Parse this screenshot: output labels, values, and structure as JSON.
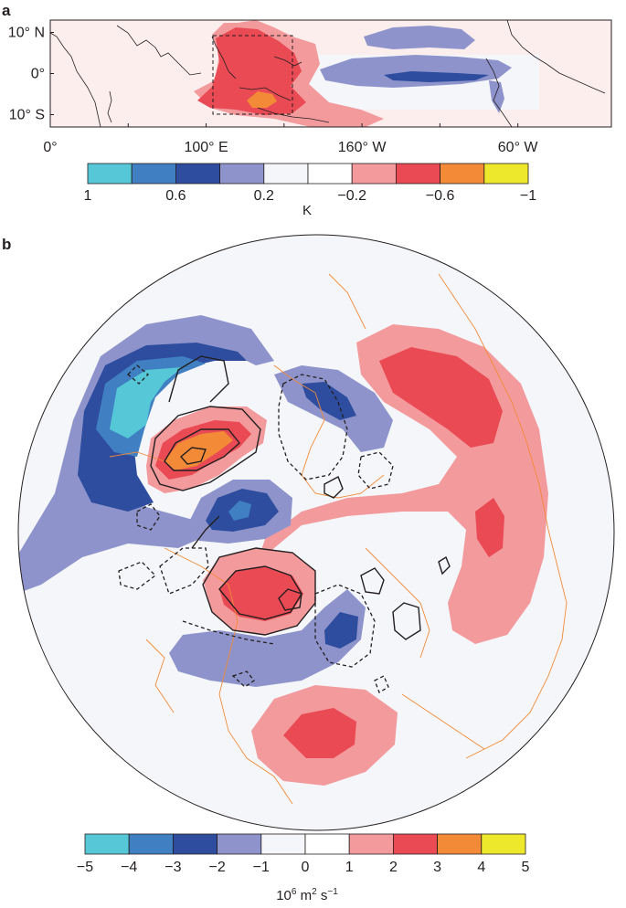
{
  "chart_data": [
    {
      "panel_label": "a",
      "type": "heatmap",
      "x_ticks": [
        "0°",
        "100° E",
        "160° W",
        "60° W"
      ],
      "x_tick_values": [
        0,
        100,
        200,
        300
      ],
      "y_ticks": [
        "10° N",
        "0°",
        "10° S"
      ],
      "y_tick_values": [
        10,
        0,
        -10
      ],
      "xlim": [
        0,
        360
      ],
      "ylim": [
        -13,
        13
      ],
      "box_region": {
        "lon": [
          100,
          150
        ],
        "lat": [
          -10,
          10
        ]
      },
      "colorbar": {
        "tick_labels": [
          "1",
          "0.6",
          "0.2",
          "−0.2",
          "−0.6",
          "−1"
        ],
        "unit": "K",
        "colors": [
          "#55c7d6",
          "#3f7fc2",
          "#2e4d9e",
          "#8e94cb",
          "#f4f6fa",
          "#ffffff",
          "#f39a9d",
          "#ea4a53",
          "#f28a37",
          "#eee82d"
        ]
      },
      "features": [
        {
          "name": "maritime-continent-warm",
          "level": -0.6,
          "lon": 118,
          "lat": -5
        },
        {
          "name": "maritime-continent-peak",
          "level": -1.0,
          "lon": 130,
          "lat": -6
        },
        {
          "name": "central-pacific-cool",
          "level": 0.6,
          "lon": 215,
          "lat": 0
        },
        {
          "name": "north-pacific-cool",
          "level": 0.2,
          "lon": 210,
          "lat": 8
        }
      ]
    },
    {
      "panel_label": "b",
      "type": "heatmap",
      "projection": "north-polar-stereographic",
      "colorbar": {
        "tick_labels": [
          "−5",
          "−4",
          "−3",
          "−2",
          "−1",
          "0",
          "1",
          "2",
          "3",
          "4",
          "5"
        ],
        "unit_base": "10",
        "unit_exp": "6",
        "unit_mid": " m",
        "unit_exp2": "2",
        "unit_mid2": " s",
        "unit_exp3": "−1",
        "colors": [
          "#55c7d6",
          "#3f7fc2",
          "#2e4d9e",
          "#8e94cb",
          "#f4f6fa",
          "#ffffff",
          "#f39a9d",
          "#ea4a53",
          "#f28a37",
          "#eee82d"
        ]
      },
      "anomalies": [
        {
          "name": "arc-negative",
          "level": -5
        },
        {
          "name": "arc-positive",
          "level": 4
        },
        {
          "name": "right-positive",
          "level": 3
        },
        {
          "name": "center-negative",
          "level": -4
        },
        {
          "name": "center-positive",
          "level": 3
        },
        {
          "name": "lower-negative",
          "level": -3
        },
        {
          "name": "bottom-positive",
          "level": 3
        }
      ]
    }
  ]
}
